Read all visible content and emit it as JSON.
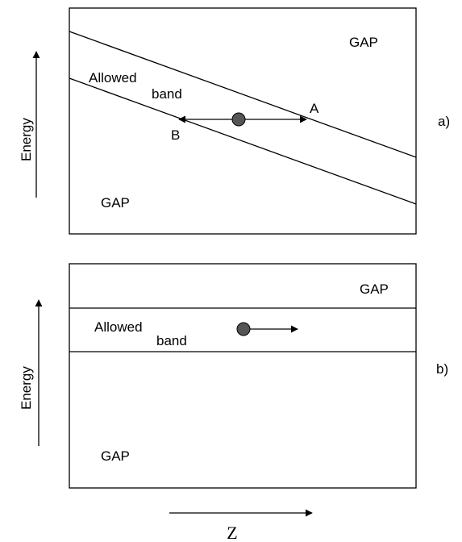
{
  "panel_a": {
    "label": "a)",
    "energy_label": "Energy",
    "gap_top": "GAP",
    "gap_bottom": "GAP",
    "allowed_line1": "Allowed",
    "allowed_line2": "band",
    "point_a": "A",
    "point_b": "B"
  },
  "panel_b": {
    "label": "b)",
    "energy_label": "Energy",
    "gap_top": "GAP",
    "gap_bottom": "GAP",
    "allowed_line1": "Allowed",
    "allowed_line2": "band"
  },
  "z_axis": {
    "label": "Z"
  },
  "colors": {
    "particle": "#555555",
    "stroke": "#000000"
  }
}
